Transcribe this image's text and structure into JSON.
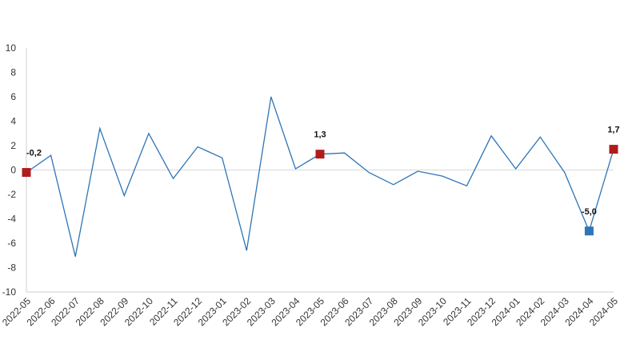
{
  "chart_data": {
    "type": "line",
    "title": "",
    "xlabel": "",
    "ylabel": "",
    "ylim": [
      -10,
      10
    ],
    "yticks": [
      -10,
      -8,
      -6,
      -4,
      -2,
      0,
      2,
      4,
      6,
      8,
      10
    ],
    "grid": false,
    "categories": [
      "2022-05",
      "2022-06",
      "2022-07",
      "2022-08",
      "2022-09",
      "2022-10",
      "2022-11",
      "2022-12",
      "2023-01",
      "2023-02",
      "2023-03",
      "2023-04",
      "2023-05",
      "2023-06",
      "2023-07",
      "2023-08",
      "2023-09",
      "2023-10",
      "2023-11",
      "2023-12",
      "2024-01",
      "2024-02",
      "2024-03",
      "2024-04",
      "2024-05"
    ],
    "series": [
      {
        "values": [
          -0.2,
          1.2,
          -7.1,
          3.4,
          -2.1,
          3.0,
          -0.7,
          1.9,
          1.0,
          -6.6,
          6.0,
          0.1,
          1.3,
          1.4,
          -0.2,
          -1.2,
          -0.1,
          -0.5,
          -1.3,
          2.8,
          0.1,
          2.7,
          -0.2,
          -5.0,
          1.7
        ],
        "color": "#2e75b6"
      }
    ],
    "highlights": [
      {
        "index": 0,
        "label": "-0,2",
        "color": "#b01c1c"
      },
      {
        "index": 12,
        "label": "1,3",
        "color": "#b01c1c"
      },
      {
        "index": 23,
        "label": "-5,0",
        "color": "#2e75b6"
      },
      {
        "index": 24,
        "label": "1,7",
        "color": "#b01c1c"
      }
    ],
    "colors": {
      "line": "#2e75b6",
      "peak_marker": "#b01c1c",
      "trough_marker": "#2e75b6"
    }
  }
}
